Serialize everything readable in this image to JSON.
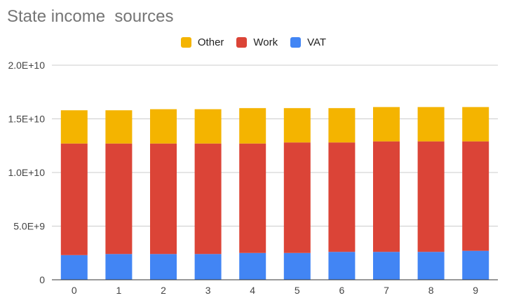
{
  "chart_data": {
    "type": "bar",
    "stacked": true,
    "title": "State income  sources",
    "xlabel": "",
    "ylabel": "",
    "categories": [
      "0",
      "1",
      "2",
      "3",
      "4",
      "5",
      "6",
      "7",
      "8",
      "9"
    ],
    "series": [
      {
        "name": "VAT",
        "color": "#4285f4",
        "values": [
          2300000000.0,
          2400000000.0,
          2400000000.0,
          2400000000.0,
          2500000000.0,
          2500000000.0,
          2600000000.0,
          2600000000.0,
          2600000000.0,
          2700000000.0
        ]
      },
      {
        "name": "Work",
        "color": "#db4437",
        "values": [
          10400000000.0,
          10300000000.0,
          10300000000.0,
          10300000000.0,
          10200000000.0,
          10300000000.0,
          10200000000.0,
          10300000000.0,
          10300000000.0,
          10200000000.0
        ]
      },
      {
        "name": "Other",
        "color": "#f4b400",
        "values": [
          3100000000.0,
          3100000000.0,
          3200000000.0,
          3200000000.0,
          3300000000.0,
          3200000000.0,
          3200000000.0,
          3200000000.0,
          3200000000.0,
          3200000000.0
        ]
      }
    ],
    "legend": {
      "position": "top",
      "order": [
        "Other",
        "Work",
        "VAT"
      ]
    },
    "ylim": [
      0,
      20000000000.0
    ],
    "y_ticks": [
      {
        "value": 0,
        "label": "0"
      },
      {
        "value": 5000000000.0,
        "label": "5.0E+9"
      },
      {
        "value": 10000000000.0,
        "label": "1.0E+10"
      },
      {
        "value": 15000000000.0,
        "label": "1.5E+10"
      },
      {
        "value": 20000000000.0,
        "label": "2.0E+10"
      }
    ],
    "grid": true
  }
}
